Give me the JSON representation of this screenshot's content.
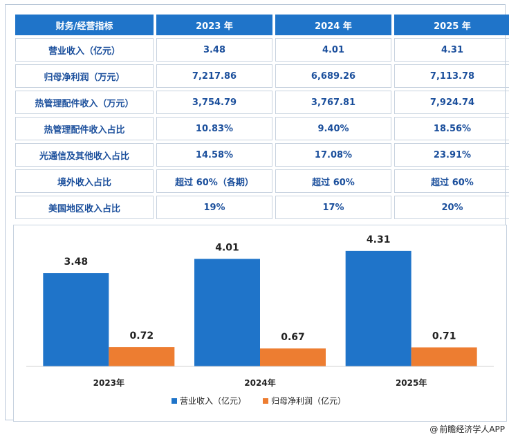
{
  "table": {
    "headers": [
      "财务/经营指标",
      "2023 年",
      "2024 年",
      "2025 年"
    ],
    "rows": [
      [
        "营业收入（亿元）",
        "3.48",
        "4.01",
        "4.31"
      ],
      [
        "归母净利润（万元）",
        "7,217.86",
        "6,689.26",
        "7,113.78"
      ],
      [
        "热管理配件收入（万元）",
        "3,754.79",
        "3,767.81",
        "7,924.74"
      ],
      [
        "热管理配件收入占比",
        "10.83%",
        "9.40%",
        "18.56%"
      ],
      [
        "光通信及其他收入占比",
        "14.58%",
        "17.08%",
        "23.91%"
      ],
      [
        "境外收入占比",
        "超过 60%（各期）",
        "超过 60%",
        "超过 60%"
      ],
      [
        "美国地区收入占比",
        "19%",
        "17%",
        "20%"
      ]
    ]
  },
  "chart_data": {
    "type": "bar",
    "categories": [
      "2023年",
      "2024年",
      "2025年"
    ],
    "series": [
      {
        "name": "营业收入（亿元）",
        "values": [
          3.48,
          4.01,
          4.31
        ],
        "labels": [
          "3.48",
          "4.01",
          "4.31"
        ],
        "color": "#1f74c9"
      },
      {
        "name": "归母净利润（亿元）",
        "values": [
          0.72,
          0.67,
          0.71
        ],
        "labels": [
          "0.72",
          "0.67",
          "0.71"
        ],
        "color": "#ed7d31"
      }
    ],
    "title": "",
    "xlabel": "",
    "ylabel": "",
    "ylim": [
      0,
      4.9
    ],
    "grid": false,
    "legend": "bottom"
  },
  "source": {
    "at": "@",
    "text": "前瞻经济学人APP"
  }
}
